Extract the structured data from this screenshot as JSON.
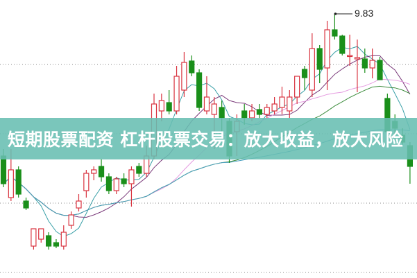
{
  "banner": {
    "text": "短期股票配资 杠杆股票交易：放大收益，放大风险"
  },
  "chart_data": {
    "type": "candlestick",
    "max_label": "9.83",
    "ylim": [
      6.02,
      10.03
    ],
    "grid": {
      "dotted_levels": [
        9.1,
        8.1,
        7.1,
        6.1
      ]
    },
    "colors": {
      "up": "#d9333f",
      "down": "#1a8f1a",
      "ma": [
        "#3aa0a8",
        "#7a3a7a",
        "#e59be0",
        "#3c8c3c",
        "#4a9fc0"
      ]
    },
    "ma_windows": [
      5,
      10,
      20,
      30,
      60
    ],
    "candles": [
      [
        7.78,
        7.88,
        7.33,
        7.38
      ],
      [
        7.18,
        7.88,
        7.13,
        7.58
      ],
      [
        7.58,
        7.63,
        7.18,
        7.23
      ],
      [
        7.13,
        7.18,
        7.0,
        7.03
      ],
      [
        6.48,
        6.73,
        6.43,
        6.73
      ],
      [
        6.58,
        6.73,
        6.53,
        6.73
      ],
      [
        6.63,
        6.68,
        6.43,
        6.48
      ],
      [
        6.53,
        6.58,
        6.45,
        6.48
      ],
      [
        6.48,
        6.78,
        6.43,
        6.68
      ],
      [
        6.78,
        6.98,
        6.73,
        6.93
      ],
      [
        7.03,
        7.23,
        6.98,
        7.13
      ],
      [
        7.28,
        7.58,
        7.18,
        7.53
      ],
      [
        7.53,
        7.63,
        7.43,
        7.58
      ],
      [
        7.63,
        7.73,
        7.41,
        7.48
      ],
      [
        7.48,
        7.53,
        7.23,
        7.28
      ],
      [
        7.28,
        7.48,
        7.23,
        7.45
      ],
      [
        7.45,
        7.53,
        7.33,
        7.38
      ],
      [
        7.38,
        7.63,
        7.05,
        7.58
      ],
      [
        7.63,
        7.68,
        7.48,
        7.53
      ],
      [
        7.53,
        7.93,
        7.48,
        7.78
      ],
      [
        7.78,
        8.68,
        7.73,
        8.53
      ],
      [
        8.43,
        8.68,
        8.28,
        8.58
      ],
      [
        8.55,
        8.73,
        8.38,
        8.43
      ],
      [
        8.43,
        9.08,
        8.38,
        8.93
      ],
      [
        8.73,
        9.28,
        8.63,
        9.13
      ],
      [
        9.15,
        9.23,
        8.93,
        8.98
      ],
      [
        8.98,
        9.03,
        8.43,
        8.48
      ],
      [
        8.43,
        8.93,
        8.38,
        8.63
      ],
      [
        8.38,
        8.63,
        7.88,
        8.53
      ],
      [
        8.48,
        8.58,
        8.03,
        8.33
      ],
      [
        8.28,
        8.33,
        7.68,
        7.78
      ],
      [
        8.13,
        8.38,
        7.78,
        8.28
      ],
      [
        8.43,
        8.53,
        8.23,
        8.33
      ],
      [
        8.33,
        8.53,
        8.28,
        8.43
      ],
      [
        8.45,
        8.53,
        8.33,
        8.38
      ],
      [
        8.38,
        8.53,
        8.33,
        8.48
      ],
      [
        8.43,
        8.63,
        8.38,
        8.53
      ],
      [
        8.48,
        8.78,
        8.38,
        8.63
      ],
      [
        8.43,
        8.73,
        8.33,
        8.63
      ],
      [
        8.63,
        8.93,
        8.53,
        8.93
      ],
      [
        9.03,
        9.08,
        8.73,
        8.91
      ],
      [
        8.73,
        9.55,
        8.63,
        9.33
      ],
      [
        9.33,
        9.38,
        8.83,
        9.03
      ],
      [
        9.05,
        9.73,
        8.73,
        9.6
      ],
      [
        9.6,
        9.83,
        9.46,
        9.51
      ],
      [
        9.51,
        9.53,
        9.23,
        9.26
      ],
      [
        9.23,
        9.53,
        9.08,
        9.23
      ],
      [
        9.18,
        9.46,
        8.7,
        9.2
      ],
      [
        9.18,
        9.33,
        8.98,
        9.05
      ],
      [
        9.05,
        9.33,
        8.9,
        9.16
      ],
      [
        9.16,
        9.21,
        8.88,
        8.88
      ],
      [
        8.61,
        8.68,
        8.13,
        8.13
      ],
      [
        8.28,
        8.38,
        8.08,
        8.18
      ],
      [
        8.08,
        8.18,
        7.93,
        7.98
      ],
      [
        7.93,
        7.98,
        7.38,
        7.63
      ]
    ]
  }
}
